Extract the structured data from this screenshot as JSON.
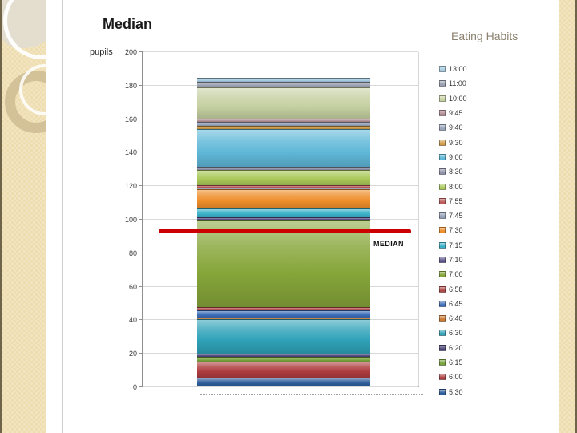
{
  "slide": {
    "title": "Median",
    "y_axis_title": "pupils",
    "legend_title": "Eating Habits"
  },
  "chart_data": {
    "type": "bar",
    "subtype": "stacked-single-column",
    "title": "Median",
    "ylabel": "pupils",
    "legend_title": "Eating Habits",
    "legend_position": "right",
    "grid": true,
    "ylim": [
      0,
      200
    ],
    "yticks": [
      0,
      20,
      40,
      60,
      80,
      100,
      120,
      140,
      160,
      180,
      200
    ],
    "total": 184,
    "median_line": {
      "label": "MEDIAN",
      "value": 93.5,
      "color": "#cc0000"
    },
    "series": [
      {
        "name": "13:00",
        "value": 2,
        "color": "#a5cbe0"
      },
      {
        "name": "11:00",
        "value": 3.5,
        "color": "#9aa0b0"
      },
      {
        "name": "10:00",
        "value": 18.5,
        "color": "#c6d1a2"
      },
      {
        "name": "9:45",
        "value": 2,
        "color": "#b18d95"
      },
      {
        "name": "9:40",
        "value": 2.5,
        "color": "#9aa6bc"
      },
      {
        "name": "9:30",
        "value": 2,
        "color": "#cf9a45"
      },
      {
        "name": "9:00",
        "value": 22.5,
        "color": "#5fb8d8"
      },
      {
        "name": "8:30",
        "value": 2,
        "color": "#9093aa"
      },
      {
        "name": "8:00",
        "value": 9,
        "color": "#a8c858"
      },
      {
        "name": "7:55",
        "value": 1.25,
        "color": "#bd5b5b"
      },
      {
        "name": "7:45",
        "value": 1.25,
        "color": "#8e9cb4"
      },
      {
        "name": "7:30",
        "value": 11.5,
        "color": "#ee8e2b"
      },
      {
        "name": "7:15",
        "value": 5,
        "color": "#3ab1c9"
      },
      {
        "name": "7:10",
        "value": 1.5,
        "color": "#5c5289"
      },
      {
        "name": "7:00",
        "value": 52,
        "color": "#86a63a"
      },
      {
        "name": "6:58",
        "value": 2,
        "color": "#b04a48"
      },
      {
        "name": "6:45",
        "value": 4.5,
        "color": "#3b6db8"
      },
      {
        "name": "6:40",
        "value": 1,
        "color": "#cd7a33"
      },
      {
        "name": "6:30",
        "value": 20.5,
        "color": "#2fa2b8"
      },
      {
        "name": "6:20",
        "value": 2,
        "color": "#4c4779"
      },
      {
        "name": "6:15",
        "value": 2.5,
        "color": "#79a43d"
      },
      {
        "name": "6:00",
        "value": 10,
        "color": "#ad3c3e"
      },
      {
        "name": "5:30",
        "value": 5,
        "color": "#2d5d9a"
      }
    ]
  }
}
